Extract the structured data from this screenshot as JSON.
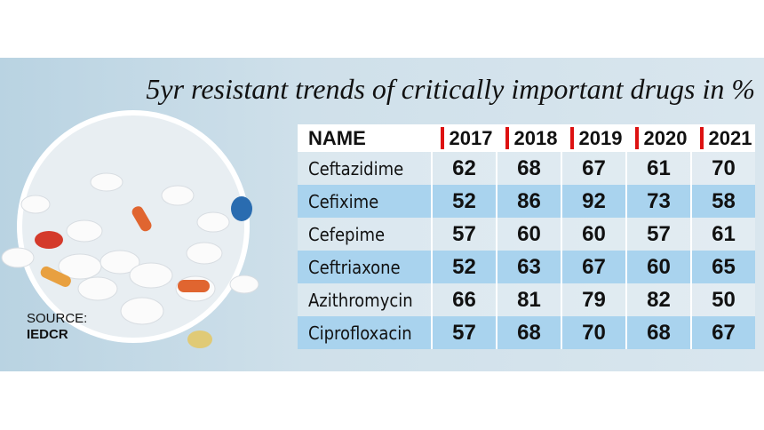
{
  "header": {
    "title": "5yr resistant trends of critically important drugs in %"
  },
  "source": {
    "label": "SOURCE:",
    "name": "IEDCR"
  },
  "table": {
    "columns": [
      "NAME",
      "2017",
      "2018",
      "2019",
      "2020",
      "2021"
    ],
    "rows": [
      [
        "Ceftazidime",
        62,
        68,
        67,
        61,
        70
      ],
      [
        "Cefixime",
        52,
        86,
        92,
        73,
        58
      ],
      [
        "Cefepime",
        57,
        60,
        60,
        57,
        61
      ],
      [
        "Ceftriaxone",
        52,
        63,
        67,
        60,
        65
      ],
      [
        "Azithromycin",
        66,
        81,
        79,
        82,
        50
      ],
      [
        "Ciprofloxacin",
        57,
        68,
        70,
        68,
        67
      ]
    ]
  }
}
